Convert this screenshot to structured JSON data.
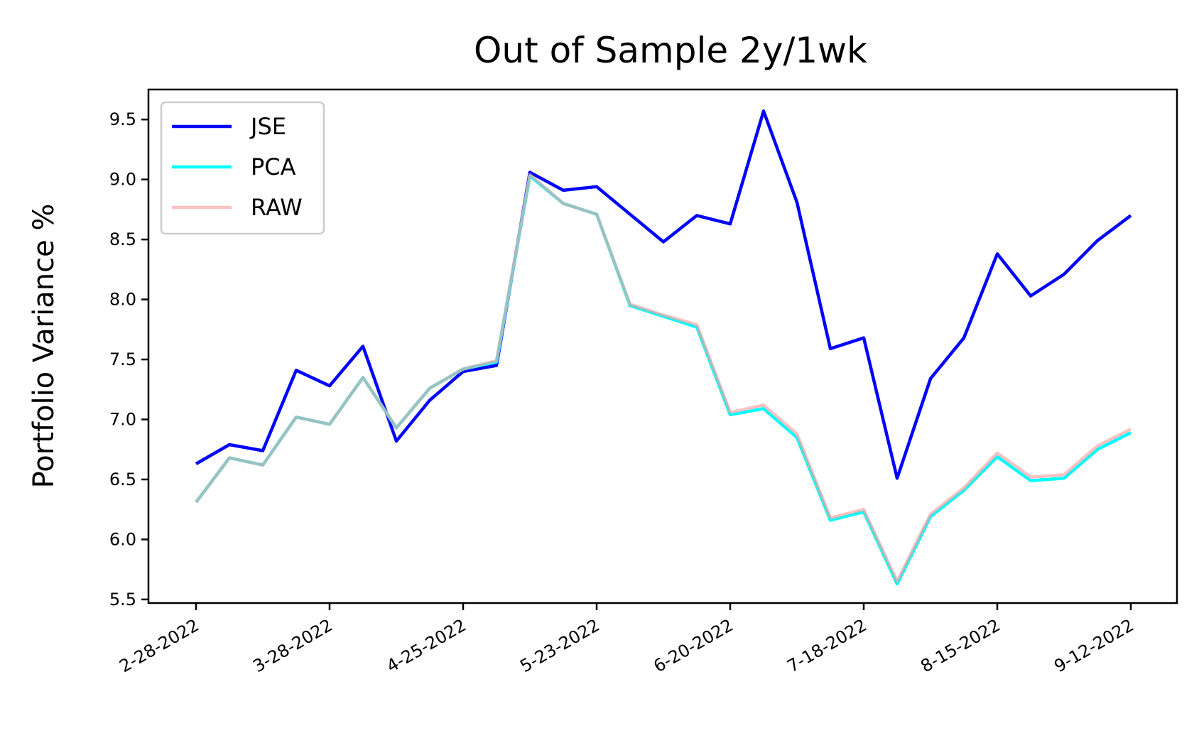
{
  "chart_data": {
    "type": "line",
    "title": "Out of Sample 2y/1wk",
    "xlabel": "",
    "ylabel": "Portfolio Variance %",
    "x_ticks": [
      "2-28-2022",
      "3-28-2022",
      "4-25-2022",
      "5-23-2022",
      "6-20-2022",
      "7-18-2022",
      "8-15-2022",
      "9-12-2022"
    ],
    "y_ticks": [
      "5.5",
      "6.0",
      "6.5",
      "7.0",
      "7.5",
      "8.0",
      "8.5",
      "9.0",
      "9.5"
    ],
    "ylim": [
      5.47,
      9.75
    ],
    "x": [
      "2-28-2022",
      "3-7-2022",
      "3-14-2022",
      "3-21-2022",
      "3-28-2022",
      "4-4-2022",
      "4-11-2022",
      "4-18-2022",
      "4-25-2022",
      "5-2-2022",
      "5-9-2022",
      "5-16-2022",
      "5-23-2022",
      "5-30-2022",
      "6-6-2022",
      "6-13-2022",
      "6-20-2022",
      "6-27-2022",
      "7-4-2022",
      "7-11-2022",
      "7-18-2022",
      "7-25-2022",
      "8-1-2022",
      "8-8-2022",
      "8-15-2022",
      "8-22-2022",
      "8-29-2022",
      "9-5-2022",
      "9-12-2022"
    ],
    "grid": false,
    "legend_position": "top-left",
    "series": [
      {
        "name": "JSE",
        "color": "#0000ff",
        "values": [
          6.63,
          6.79,
          6.74,
          7.41,
          7.28,
          7.61,
          6.82,
          7.16,
          7.4,
          7.45,
          9.06,
          8.91,
          8.94,
          8.71,
          8.48,
          8.7,
          8.63,
          9.57,
          8.81,
          7.59,
          7.68,
          6.51,
          7.34,
          7.68,
          8.38,
          8.03,
          8.21,
          8.49,
          8.7
        ]
      },
      {
        "name": "PCA",
        "color": "#00ffff",
        "values": [
          6.31,
          6.68,
          6.62,
          7.02,
          6.96,
          7.35,
          6.93,
          7.26,
          7.42,
          7.48,
          9.03,
          8.8,
          8.71,
          7.95,
          7.86,
          7.77,
          7.04,
          7.09,
          6.85,
          6.16,
          6.23,
          5.63,
          6.19,
          6.41,
          6.69,
          6.49,
          6.51,
          6.75,
          6.89
        ]
      },
      {
        "name": "RAW",
        "color": "#ff9999",
        "values": [
          6.31,
          6.68,
          6.62,
          7.02,
          6.96,
          7.35,
          6.93,
          7.26,
          7.42,
          7.49,
          9.04,
          8.8,
          8.71,
          7.96,
          7.87,
          7.79,
          7.06,
          7.12,
          6.88,
          6.18,
          6.25,
          5.65,
          6.21,
          6.43,
          6.72,
          6.52,
          6.54,
          6.78,
          6.92
        ]
      }
    ]
  }
}
